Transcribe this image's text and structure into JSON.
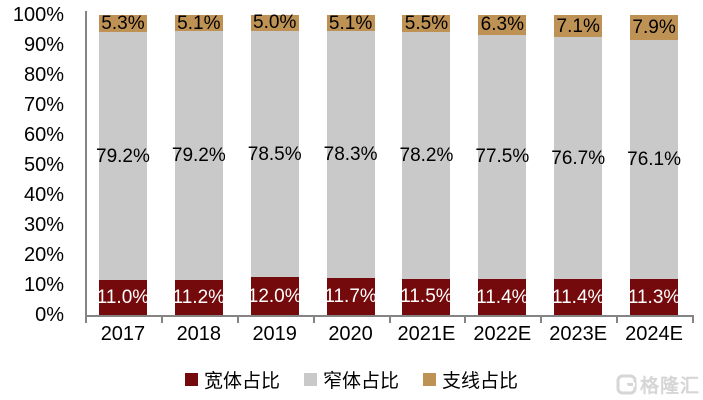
{
  "chart_data": {
    "type": "bar",
    "subtype": "stacked-100-percent",
    "categories": [
      "2017",
      "2018",
      "2019",
      "2020",
      "2021E",
      "2022E",
      "2023E",
      "2024E"
    ],
    "series": [
      {
        "name": "宽体占比",
        "color": "#750A0C",
        "label_color": "#FFFFFF",
        "values": [
          11.0,
          11.2,
          12.0,
          11.7,
          11.5,
          11.4,
          11.4,
          11.3
        ]
      },
      {
        "name": "窄体占比",
        "color": "#C9C9C9",
        "label_color": "#000000",
        "values": [
          79.2,
          79.2,
          78.5,
          78.3,
          78.2,
          77.5,
          76.7,
          76.1
        ]
      },
      {
        "name": "支线占比",
        "color": "#BE9255",
        "label_color": "#000000",
        "values": [
          5.3,
          5.1,
          5.0,
          5.1,
          5.5,
          6.3,
          7.1,
          7.9
        ]
      }
    ],
    "y_axis": {
      "min": 0,
      "max": 100,
      "step": 10,
      "tick_suffix": "%"
    },
    "xlabel": "",
    "ylabel": "",
    "title": "",
    "grid": false,
    "legend_position": "bottom",
    "axis_color": "#848484",
    "label_suffix": "%"
  },
  "watermark": {
    "text": "格隆汇"
  }
}
